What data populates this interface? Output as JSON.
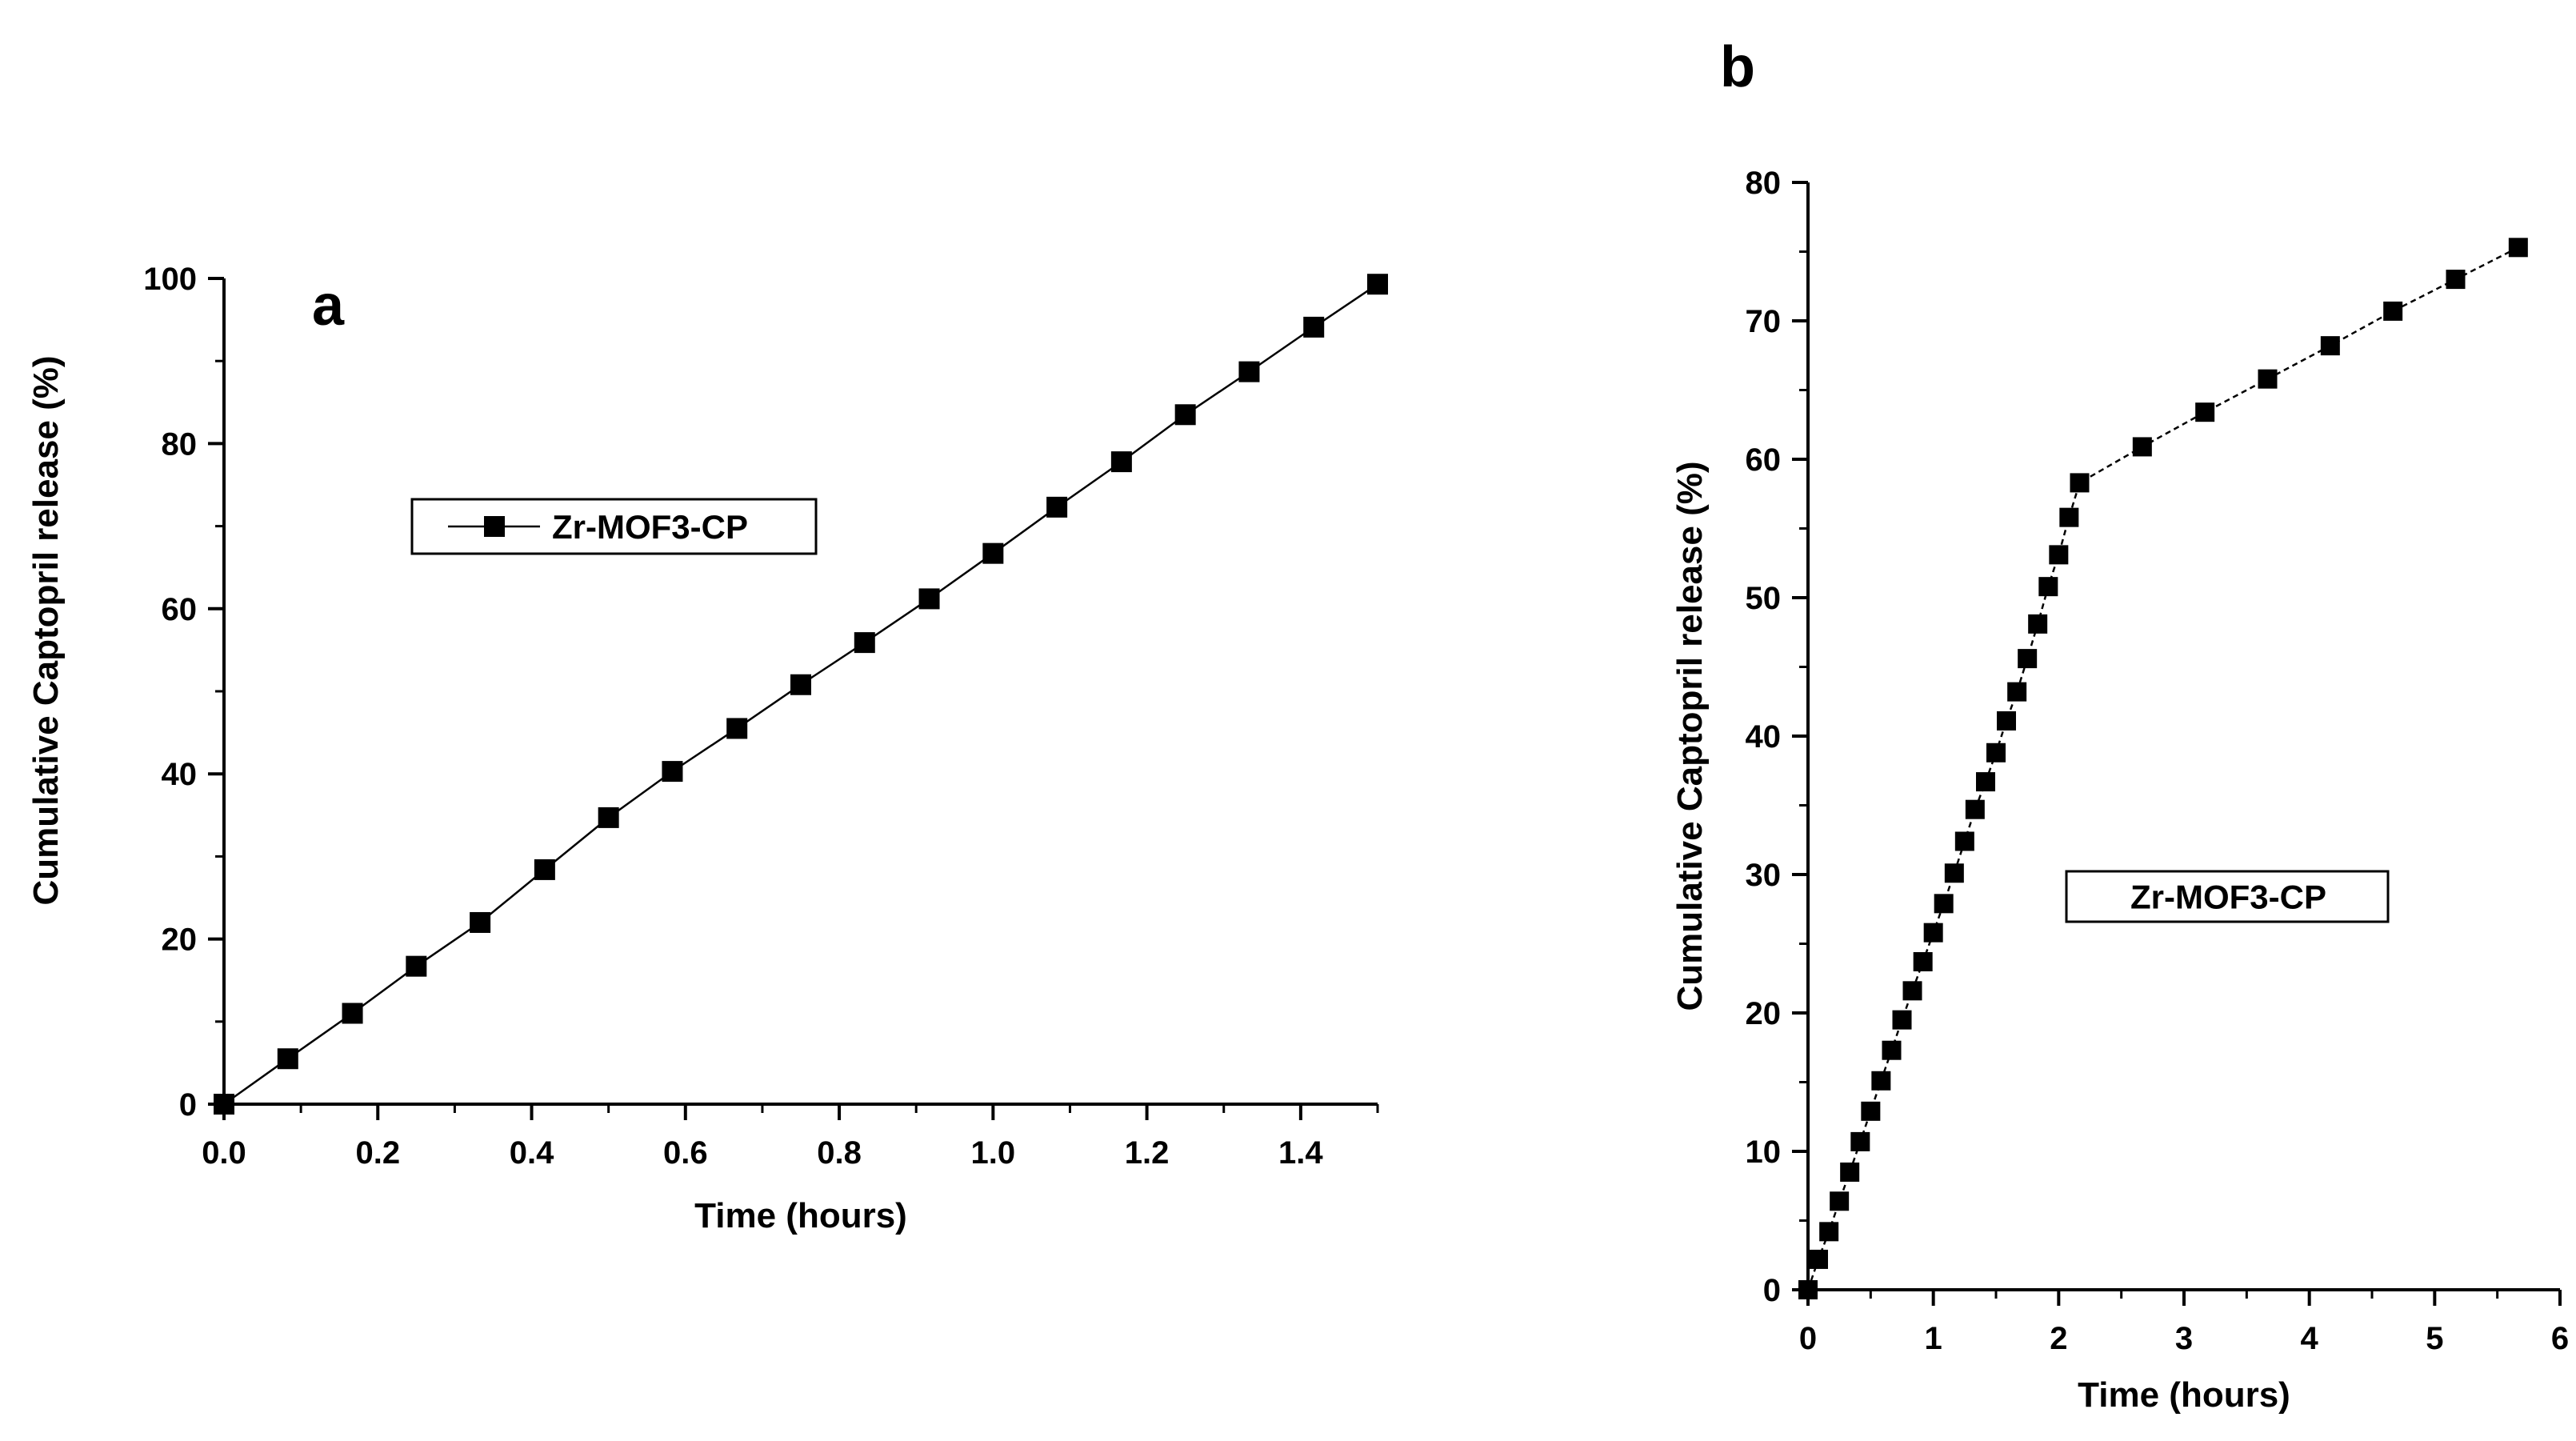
{
  "chart_data": [
    {
      "type": "line",
      "panel_label": "a",
      "xlabel": "Time (hours)",
      "ylabel": "Cumulative Captopril release (%)",
      "xlim": [
        0,
        1.5
      ],
      "ylim": [
        0,
        100
      ],
      "xticks": [
        "0.0",
        "0.2",
        "0.4",
        "0.6",
        "0.8",
        "1.0",
        "1.2",
        "1.4"
      ],
      "yticks": [
        "0",
        "20",
        "40",
        "60",
        "80",
        "100"
      ],
      "legend": {
        "position": "upper-left",
        "entries": [
          "Zr-MOF3-CP"
        ]
      },
      "series": [
        {
          "name": "Zr-MOF3-CP",
          "x": [
            0,
            0.083,
            0.167,
            0.25,
            0.333,
            0.417,
            0.5,
            0.583,
            0.667,
            0.75,
            0.833,
            0.917,
            1.0,
            1.083,
            1.167,
            1.25,
            1.333,
            1.417,
            1.5
          ],
          "y": [
            0,
            5.5,
            11,
            16.7,
            22,
            28.4,
            34.7,
            40.3,
            45.5,
            50.8,
            55.9,
            61.2,
            66.7,
            72.3,
            77.8,
            83.5,
            88.7,
            94.1,
            99.3
          ]
        }
      ]
    },
    {
      "type": "line",
      "panel_label": "b",
      "xlabel": "Time (hours)",
      "ylabel": "Cumulative Captopril release (%)",
      "xlim": [
        0,
        6
      ],
      "ylim": [
        0,
        80
      ],
      "xticks": [
        "0",
        "1",
        "2",
        "3",
        "4",
        "5",
        "6"
      ],
      "yticks": [
        "0",
        "10",
        "20",
        "30",
        "40",
        "50",
        "60",
        "70",
        "80"
      ],
      "legend": {
        "position": "center-right",
        "entries": [
          "Zr-MOF3-CP"
        ]
      },
      "series": [
        {
          "name": "Zr-MOF3-CP",
          "x": [
            0,
            0.083,
            0.167,
            0.25,
            0.333,
            0.417,
            0.5,
            0.583,
            0.667,
            0.75,
            0.833,
            0.917,
            1.0,
            1.083,
            1.167,
            1.25,
            1.333,
            1.417,
            1.5,
            1.583,
            1.667,
            1.75,
            1.833,
            1.917,
            2.0,
            2.083,
            2.167,
            2.667,
            3.167,
            3.667,
            4.167,
            4.667,
            5.167,
            5.667
          ],
          "y": [
            0,
            2.2,
            4.2,
            6.4,
            8.5,
            10.7,
            12.9,
            15.1,
            17.3,
            19.5,
            21.6,
            23.7,
            25.8,
            27.9,
            30.1,
            32.4,
            34.7,
            36.7,
            38.8,
            41.1,
            43.2,
            45.6,
            48.1,
            50.8,
            53.1,
            55.8,
            58.3,
            60.9,
            63.4,
            65.8,
            68.2,
            70.7,
            73.0,
            75.3
          ]
        }
      ]
    }
  ]
}
